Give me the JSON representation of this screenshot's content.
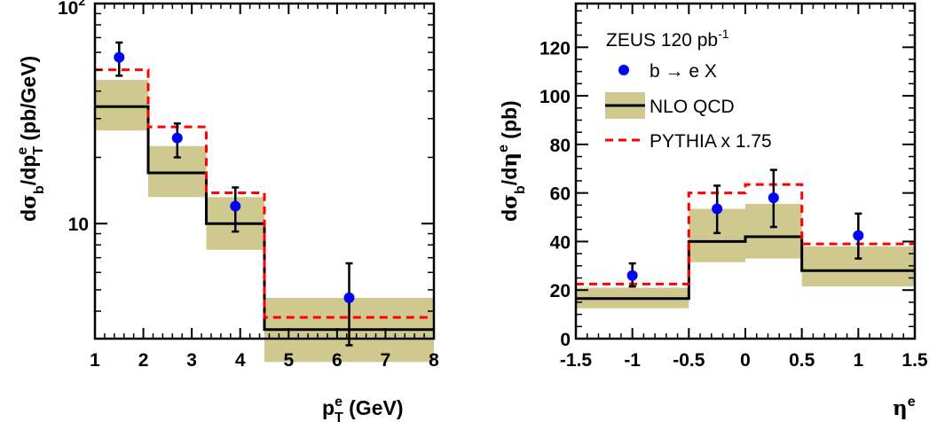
{
  "colors": {
    "nlo_band": "#d0c98f",
    "nlo_line": "#000000",
    "pythia": "#ff0000",
    "data_points": "#0000ff",
    "axes": "#000000",
    "background": "#ffffff"
  },
  "chart_data": [
    {
      "type": "line",
      "panel": "left",
      "xlabel": "p_T^e (GeV)",
      "ylabel": "dσ_b/dp_T^e (pb/GeV)",
      "xlim": [
        1,
        8
      ],
      "ylim": [
        3.0,
        100
      ],
      "log_y": true,
      "grid": false,
      "x_ticks": [
        1,
        2,
        3,
        4,
        5,
        6,
        7,
        8
      ],
      "y_ticks": [
        10,
        100
      ],
      "y_tick_labels": [
        {
          "main": "10",
          "exp": ""
        },
        {
          "main": "10",
          "exp": "2"
        }
      ],
      "bin_edges": [
        1,
        2.1,
        3.3,
        4.5,
        8
      ],
      "data": {
        "x": [
          1.5,
          2.7,
          3.9,
          6.25
        ],
        "y": [
          57,
          24.5,
          12,
          4.6
        ],
        "err_low": [
          10,
          4.5,
          2.8,
          1.8
        ],
        "err_high": [
          9.5,
          4.0,
          2.6,
          2.0
        ]
      },
      "nlo_qcd": {
        "central": [
          34,
          17,
          10,
          3.3
        ],
        "band_low": [
          26.5,
          13.2,
          7.6,
          2.35
        ],
        "band_high": [
          45,
          22.5,
          13.2,
          4.6
        ]
      },
      "pythia_x175": [
        50,
        27.5,
        13.8,
        3.75
      ]
    },
    {
      "type": "line",
      "panel": "right",
      "xlabel": "η^e",
      "ylabel": "dσ_b/dη^e (pb)",
      "xlim": [
        -1.5,
        1.5
      ],
      "ylim": [
        0,
        138
      ],
      "log_y": false,
      "grid": false,
      "x_ticks": [
        -1.5,
        -1,
        -0.5,
        0,
        0.5,
        1,
        1.5
      ],
      "x_tick_labels": [
        "-1.5",
        "-1",
        "-0.5",
        "0",
        "0.5",
        "1",
        "1.5"
      ],
      "y_ticks": [
        0,
        20,
        40,
        60,
        80,
        100,
        120
      ],
      "bin_edges": [
        -1.5,
        -0.5,
        0,
        0.5,
        1.5
      ],
      "data": {
        "x": [
          -1.0,
          -0.25,
          0.25,
          1.0
        ],
        "y": [
          26,
          53.5,
          58,
          42.5
        ],
        "err_low": [
          4.5,
          10,
          12,
          9.5
        ],
        "err_high": [
          5,
          9.5,
          11.5,
          9
        ]
      },
      "nlo_qcd": {
        "central": [
          16.5,
          40,
          42,
          28
        ],
        "band_low": [
          12.5,
          31.5,
          33,
          21.5
        ],
        "band_high": [
          21,
          53.5,
          55.5,
          38
        ]
      },
      "pythia_x175": [
        22.5,
        60,
        63.5,
        39
      ],
      "legend": {
        "placement": "top-left",
        "title": "ZEUS 120 pb",
        "title_sup": "-1",
        "entries": [
          {
            "label": "b → e X",
            "kind": "marker"
          },
          {
            "label": "NLO QCD",
            "kind": "band"
          },
          {
            "label": "PYTHIA x 1.75",
            "kind": "dashed"
          }
        ]
      }
    }
  ]
}
